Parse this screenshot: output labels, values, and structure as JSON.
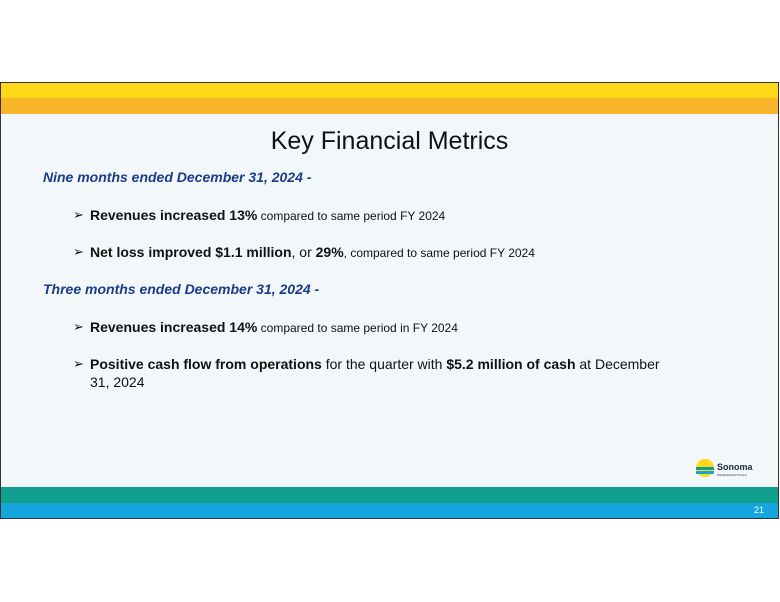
{
  "slide": {
    "title": "Key Financial Metrics",
    "section1": {
      "heading": "Nine months ended December 31, 2024 -",
      "bullets": [
        {
          "bold": "Revenues increased 13%",
          "rest": " compared to same period FY 2024"
        },
        {
          "bold": "Net loss improved $1.1 million",
          "mid": ", or ",
          "bold2": "29%",
          "rest": ", compared to same period FY 2024"
        }
      ]
    },
    "section2": {
      "heading": "Three months ended December 31, 2024 -",
      "bullets": [
        {
          "bold": "Revenues increased 14%",
          "rest": " compared to same period in FY 2024"
        },
        {
          "bold": "Positive cash flow from operations",
          "mid": " for the quarter with ",
          "bold2": "$5.2 million of cash",
          "rest": " at December 31, 2024"
        }
      ]
    },
    "bullet_glyph": "➢",
    "logo": {
      "name": "Sonoma",
      "tagline": "PHARMACEUTICALS"
    },
    "page_number": "21"
  },
  "colors": {
    "yellow": "#ffd81a",
    "orange": "#fbb52a",
    "teal": "#0f9f8c",
    "blue": "#14a6dc",
    "heading": "#1b3a8c"
  }
}
